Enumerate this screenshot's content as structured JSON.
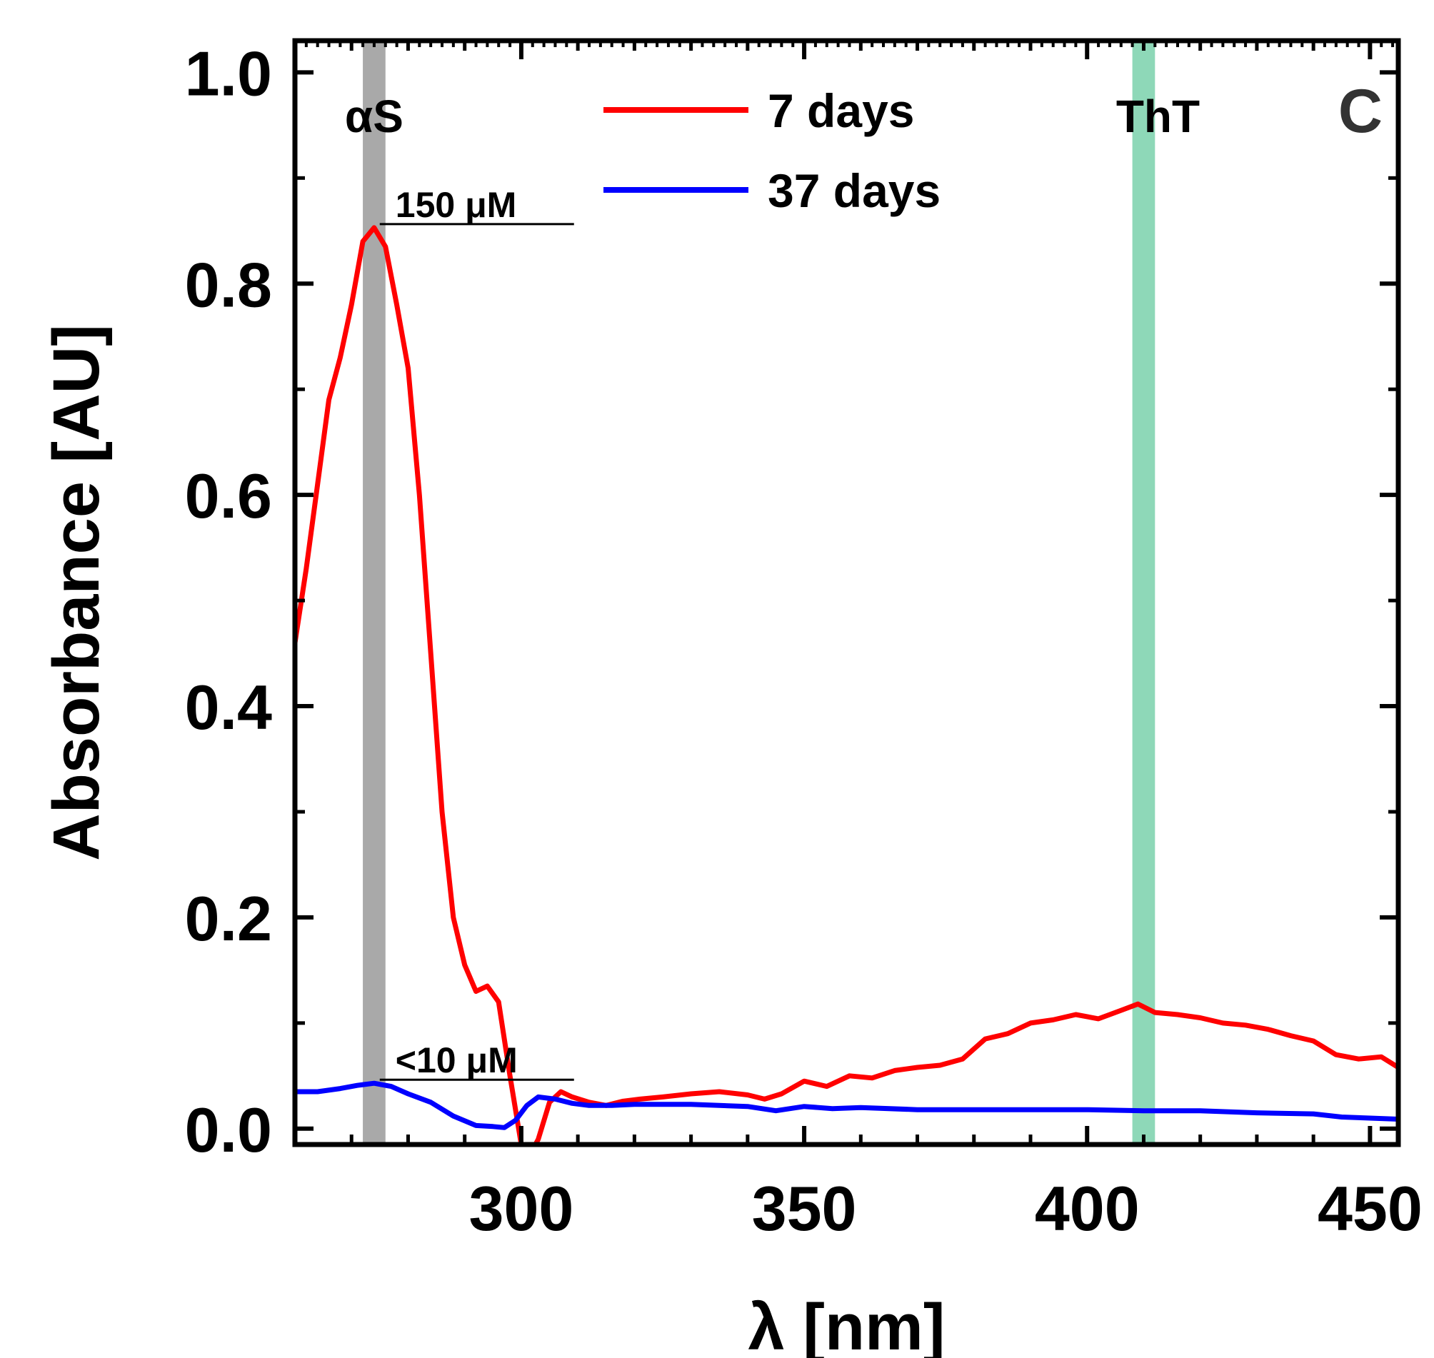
{
  "chart_data": {
    "type": "line",
    "title": "",
    "panel_label": "C",
    "xlabel": "λ [nm]",
    "ylabel": "Absorbance [AU]",
    "xlim": [
      260,
      455
    ],
    "ylim": [
      -0.015,
      1.03
    ],
    "x_ticks": [
      {
        "value": 300,
        "label": "300"
      },
      {
        "value": 350,
        "label": "350"
      },
      {
        "value": 400,
        "label": "400"
      },
      {
        "value": 450,
        "label": "450"
      }
    ],
    "y_ticks": [
      {
        "value": 0.0,
        "label": "0.0"
      },
      {
        "value": 0.2,
        "label": "0.2"
      },
      {
        "value": 0.4,
        "label": "0.4"
      },
      {
        "value": 0.6,
        "label": "0.6"
      },
      {
        "value": 0.8,
        "label": "0.8"
      },
      {
        "value": 1.0,
        "label": "1.0"
      }
    ],
    "x_minor_step": 10,
    "y_minor_step": 0.1,
    "bands": [
      {
        "name": "αS",
        "x_center": 274,
        "width": 4,
        "color": "#a9a9a9"
      },
      {
        "name": "ThT",
        "x_center": 410,
        "width": 4,
        "color": "#8ed8b8"
      }
    ],
    "annotations": [
      {
        "text": "150 μM",
        "x": 276,
        "y": 0.855,
        "series": "7 days"
      },
      {
        "text": "<10 μM",
        "x": 276,
        "y": 0.045,
        "series": "37 days"
      }
    ],
    "series": [
      {
        "name": "7 days",
        "color": "#ff0000",
        "x": [
          260,
          262,
          264,
          266,
          268,
          270,
          272,
          274,
          276,
          278,
          280,
          282,
          284,
          286,
          288,
          290,
          292,
          294,
          296,
          298,
          300,
          302,
          303,
          305,
          307,
          309,
          312,
          315,
          318,
          321,
          325,
          330,
          335,
          340,
          343,
          346,
          350,
          354,
          358,
          362,
          366,
          370,
          374,
          378,
          382,
          386,
          390,
          394,
          398,
          402,
          406,
          409,
          412,
          416,
          420,
          424,
          428,
          432,
          436,
          440,
          444,
          448,
          452,
          455
        ],
        "y": [
          0.46,
          0.53,
          0.61,
          0.69,
          0.73,
          0.78,
          0.84,
          0.853,
          0.835,
          0.78,
          0.72,
          0.6,
          0.45,
          0.3,
          0.2,
          0.155,
          0.13,
          0.135,
          0.12,
          0.05,
          -0.015,
          -0.02,
          -0.01,
          0.025,
          0.035,
          0.03,
          0.025,
          0.022,
          0.026,
          0.028,
          0.03,
          0.033,
          0.035,
          0.032,
          0.028,
          0.033,
          0.045,
          0.04,
          0.05,
          0.048,
          0.055,
          0.058,
          0.06,
          0.066,
          0.085,
          0.09,
          0.1,
          0.103,
          0.108,
          0.104,
          0.112,
          0.118,
          0.11,
          0.108,
          0.105,
          0.1,
          0.098,
          0.094,
          0.088,
          0.083,
          0.07,
          0.066,
          0.068,
          0.058
        ]
      },
      {
        "name": "37 days",
        "color": "#0000ff",
        "x": [
          260,
          264,
          268,
          271,
          274,
          277,
          280,
          284,
          288,
          292,
          295,
          297,
          299,
          301,
          303,
          306,
          309,
          312,
          316,
          320,
          325,
          330,
          335,
          340,
          345,
          350,
          355,
          360,
          370,
          380,
          390,
          400,
          410,
          420,
          430,
          440,
          445,
          450,
          455
        ],
        "y": [
          0.035,
          0.035,
          0.038,
          0.041,
          0.043,
          0.04,
          0.033,
          0.025,
          0.012,
          0.003,
          0.002,
          0.001,
          0.008,
          0.022,
          0.03,
          0.028,
          0.024,
          0.022,
          0.022,
          0.023,
          0.023,
          0.023,
          0.022,
          0.021,
          0.017,
          0.021,
          0.019,
          0.02,
          0.018,
          0.018,
          0.018,
          0.018,
          0.017,
          0.017,
          0.015,
          0.014,
          0.011,
          0.01,
          0.009
        ]
      }
    ],
    "legend": {
      "position": "top-center",
      "entries": [
        "7 days",
        "37 days"
      ]
    }
  }
}
